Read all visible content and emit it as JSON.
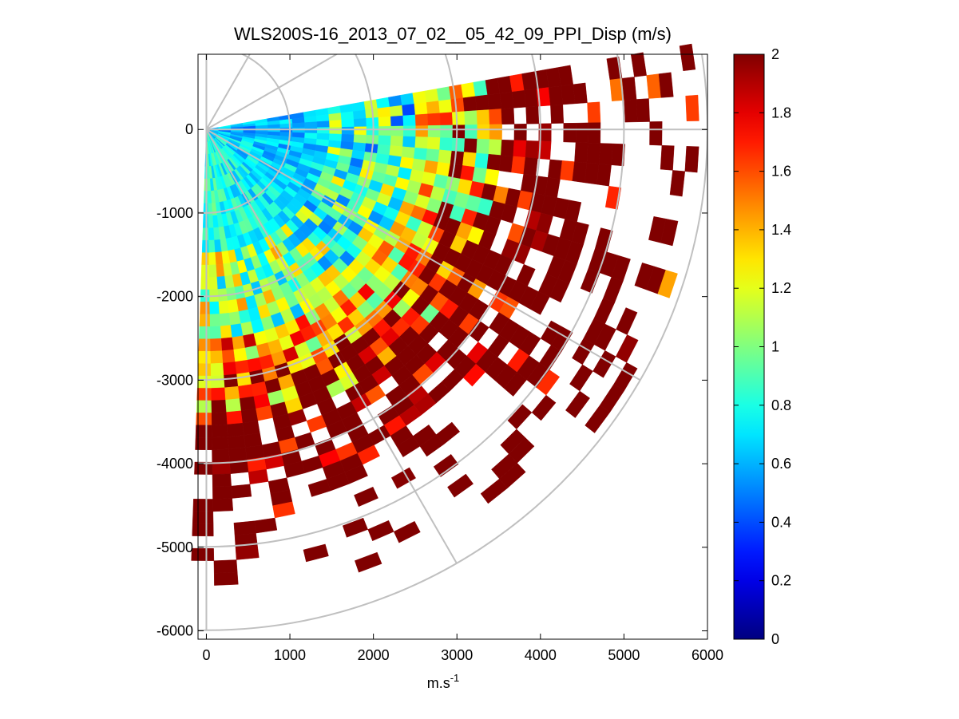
{
  "chart_data": {
    "type": "heatmap",
    "subtype": "polar PPI scan",
    "title": "WLS200S-16_2013_07_02__05_42_09_PPI_Disp (m/s)",
    "xlabel": "m.s",
    "xlabel_superscript": "-1",
    "ylabel": "",
    "xlim": [
      -100,
      6000
    ],
    "ylim": [
      -6100,
      900
    ],
    "x_ticks": [
      0,
      1000,
      2000,
      3000,
      4000,
      5000,
      6000
    ],
    "x_tick_labels": [
      "0",
      "1000",
      "2000",
      "3000",
      "4000",
      "5000",
      "6000"
    ],
    "y_ticks": [
      0,
      -1000,
      -2000,
      -3000,
      -4000,
      -5000,
      -6000
    ],
    "y_tick_labels": [
      "0",
      "-1000",
      "-2000",
      "-3000",
      "-4000",
      "-5000",
      "-6000"
    ],
    "colorbar": {
      "colormap": "jet",
      "clim": [
        0,
        2
      ],
      "ticks": [
        0,
        0.2,
        0.4,
        0.6,
        0.8,
        1,
        1.2,
        1.4,
        1.6,
        1.8,
        2
      ],
      "tick_labels": [
        "0",
        "0.2",
        "0.4",
        "0.6",
        "0.8",
        "1",
        "1.2",
        "1.4",
        "1.6",
        "1.8",
        "2"
      ]
    },
    "scan": {
      "azimuth_start_deg_ccw_from_east": 10,
      "azimuth_end_deg_ccw_from_east": -92,
      "range_max_m": 5900,
      "sector_count": 34,
      "gate_count": 40
    },
    "polar_grid": {
      "ring_radii": [
        1000,
        2000,
        3000,
        4000,
        5000,
        6000
      ],
      "spoke_angles_deg": [
        -90,
        -60,
        -30,
        0,
        30,
        60,
        90
      ]
    },
    "value_field_description_trend": [
      {
        "range_from_m": 0,
        "range_to_m": 1500,
        "typical_value": 0.72
      },
      {
        "range_from_m": 1500,
        "range_to_m": 2500,
        "typical_value": 0.95
      },
      {
        "range_from_m": 2500,
        "range_to_m": 3500,
        "typical_value": 1.35
      },
      {
        "range_from_m": 3500,
        "range_to_m": 5900,
        "typical_value": 1.9
      }
    ]
  }
}
